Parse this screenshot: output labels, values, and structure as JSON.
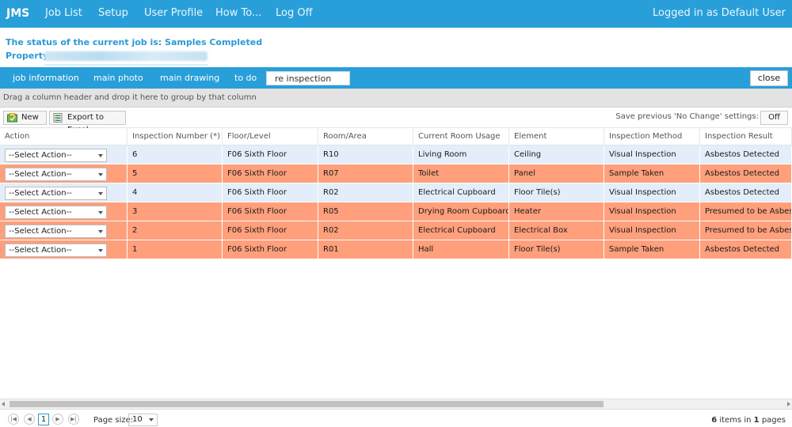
{
  "nav": {
    "brand": "JMS",
    "items": [
      "Job List",
      "Setup",
      "User Profile",
      "How To...",
      "Log Off"
    ],
    "user_text": "Logged in as Default User"
  },
  "status": {
    "line1": "The status of the current job is: Samples Completed",
    "property_label": "Property:"
  },
  "tabs": {
    "items": [
      "job information",
      "main photo",
      "main drawing",
      "to do",
      "re inspection list"
    ],
    "active": "re inspection list",
    "close_label": "close"
  },
  "grid": {
    "group_hint": "Drag a column header and drop it here to group by that column",
    "toolbar": {
      "new_label": "New",
      "export_label": "Export to Excel",
      "save_label": "Save previous 'No Change' settings:",
      "toggle_label": "Off"
    },
    "columns": [
      "Action",
      "Inspection Number (*)",
      "Floor/Level",
      "Room/Area",
      "Current Room Usage",
      "Element",
      "Inspection Method",
      "Inspection Result"
    ],
    "rows": [
      {
        "action": "--Select Action--",
        "number": "6",
        "floor": "F06 Sixth Floor",
        "room": "R10",
        "usage": "Living Room",
        "element": "Ceiling",
        "method": "Visual Inspection",
        "result": "Asbestos Detected",
        "color": "#e3eefa"
      },
      {
        "action": "--Select Action--",
        "number": "5",
        "floor": "F06 Sixth Floor",
        "room": "R07",
        "usage": "Toilet",
        "element": "Panel",
        "method": "Sample Taken",
        "result": "Asbestos Detected",
        "color": "#ff9f7c"
      },
      {
        "action": "--Select Action--",
        "number": "4",
        "floor": "F06 Sixth Floor",
        "room": "R02",
        "usage": "Electrical Cupboard",
        "element": "Floor Tile(s)",
        "method": "Visual Inspection",
        "result": "Asbestos Detected",
        "color": "#e3eefa"
      },
      {
        "action": "--Select Action--",
        "number": "3",
        "floor": "F06 Sixth Floor",
        "room": "R05",
        "usage": "Drying Room Cupboard",
        "element": "Heater",
        "method": "Visual Inspection",
        "result": "Presumed to be Asbestos",
        "color": "#ff9f7c"
      },
      {
        "action": "--Select Action--",
        "number": "2",
        "floor": "F06 Sixth Floor",
        "room": "R02",
        "usage": "Electrical Cupboard",
        "element": "Electrical Box",
        "method": "Visual Inspection",
        "result": "Presumed to be Asbestos",
        "color": "#ff9f7c"
      },
      {
        "action": "--Select Action--",
        "number": "1",
        "floor": "F06 Sixth Floor",
        "room": "R01",
        "usage": "Hall",
        "element": "Floor Tile(s)",
        "method": "Sample Taken",
        "result": "Asbestos Detected",
        "color": "#ff9f7c"
      }
    ]
  },
  "pager": {
    "current_page": "1",
    "page_size_label": "Page size:",
    "page_size": "10",
    "items_count": "6",
    "items_text": "items in",
    "pages_count": "1",
    "pages_text": "pages"
  }
}
